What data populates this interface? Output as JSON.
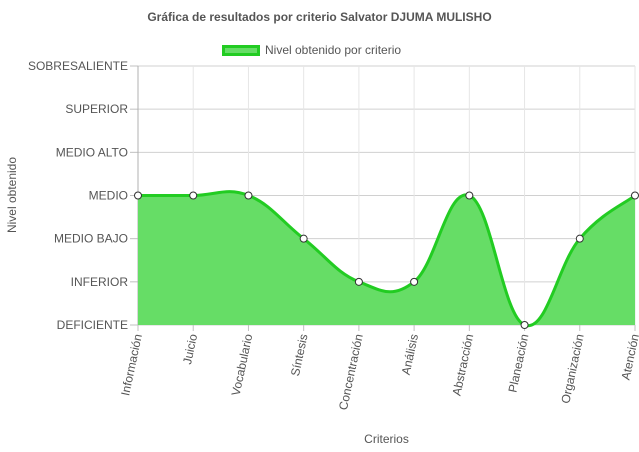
{
  "chart_data": {
    "type": "area",
    "title": "Gráfica de resultados por criterio Salvator DJUMA MULISHO",
    "xlabel": "Criterios",
    "ylabel": "Nivel obtenido",
    "y_levels": [
      "DEFICIENTE",
      "INFERIOR",
      "MEDIO BAJO",
      "MEDIO",
      "MEDIO ALTO",
      "SUPERIOR",
      "SOBRESALIENTE"
    ],
    "ylim": [
      0,
      6
    ],
    "categories": [
      "Información",
      "Juicio",
      "Vocabulario",
      "Síntesis",
      "Concentración",
      "Análisis",
      "Abstracción",
      "Planeación",
      "Organización",
      "Atención"
    ],
    "series": [
      {
        "name": "Nivel obtenido por criterio",
        "values": [
          3,
          3,
          3,
          2,
          1,
          1,
          3,
          0,
          2,
          3
        ],
        "fill_color": "#66dd66",
        "line_color": "#22cc22"
      }
    ],
    "legend_position": "top",
    "grid": true
  }
}
